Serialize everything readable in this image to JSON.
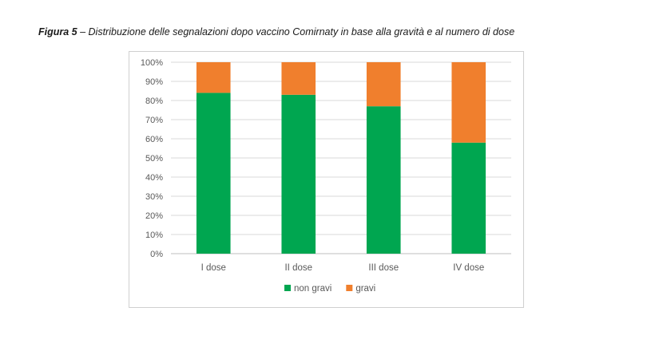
{
  "caption": {
    "label": "Figura 5",
    "text": " – Distribuzione delle segnalazioni dopo vaccino Comirnaty in base alla gravità e al numero di dose"
  },
  "chart_data": {
    "type": "bar",
    "stacked": true,
    "percent": true,
    "categories": [
      "I dose",
      "II dose",
      "III dose",
      "IV dose"
    ],
    "series": [
      {
        "name": "non gravi",
        "color": "#00A650",
        "values": [
          84,
          83,
          77,
          58
        ]
      },
      {
        "name": "gravi",
        "color": "#F07F2D",
        "values": [
          16,
          17,
          23,
          42
        ]
      }
    ],
    "ylim": [
      0,
      100
    ],
    "yticks": [
      "0%",
      "10%",
      "20%",
      "30%",
      "40%",
      "50%",
      "60%",
      "70%",
      "80%",
      "90%",
      "100%"
    ],
    "grid": true,
    "legend_position": "bottom",
    "xlabel": "",
    "ylabel": ""
  }
}
